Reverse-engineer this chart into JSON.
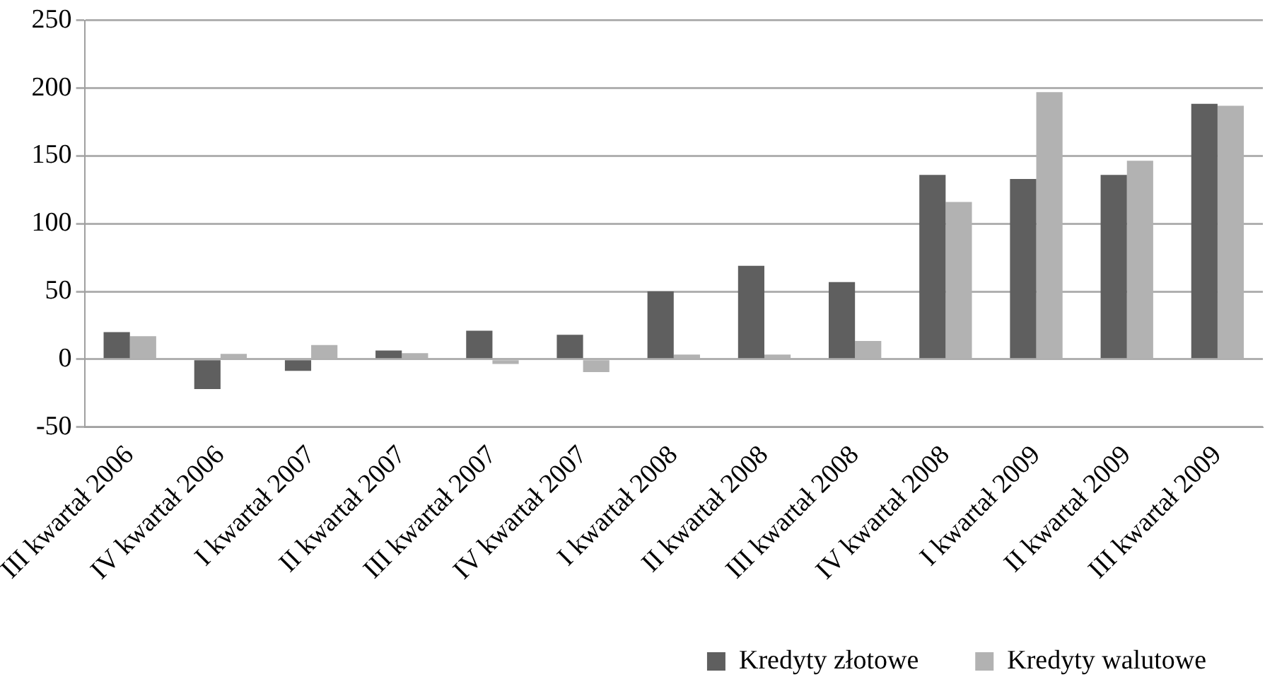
{
  "chart_data": {
    "type": "bar",
    "categories": [
      "III kwartał 2006",
      "IV kwartał 2006",
      "I kwartał 2007",
      "II kwartał 2007",
      "III kwartał 2007",
      "IV kwartał 2007",
      "I kwartał 2008",
      "II kwartał 2008",
      "III kwartał 2008",
      "IV kwartał 2008",
      "I kwartał 2009",
      "II kwartał 2009",
      "III kwartał 2009"
    ],
    "series": [
      {
        "name": "Kredyty złotowe",
        "color": "#5f5f5f",
        "values": [
          20,
          -22,
          -8.5,
          6.5,
          21,
          18,
          50,
          69,
          57,
          136,
          133,
          136,
          188.5
        ]
      },
      {
        "name": "Kredyty walutowe",
        "color": "#b2b2b2",
        "values": [
          17,
          4,
          10.5,
          4.5,
          -3.5,
          -9.5,
          3.5,
          3.5,
          13.5,
          116,
          197,
          146.5,
          187
        ]
      }
    ],
    "ylim": [
      -50,
      250
    ],
    "yticks": [
      -50,
      0,
      50,
      100,
      150,
      200,
      250
    ],
    "grid": "y",
    "legend": "bottom right"
  }
}
